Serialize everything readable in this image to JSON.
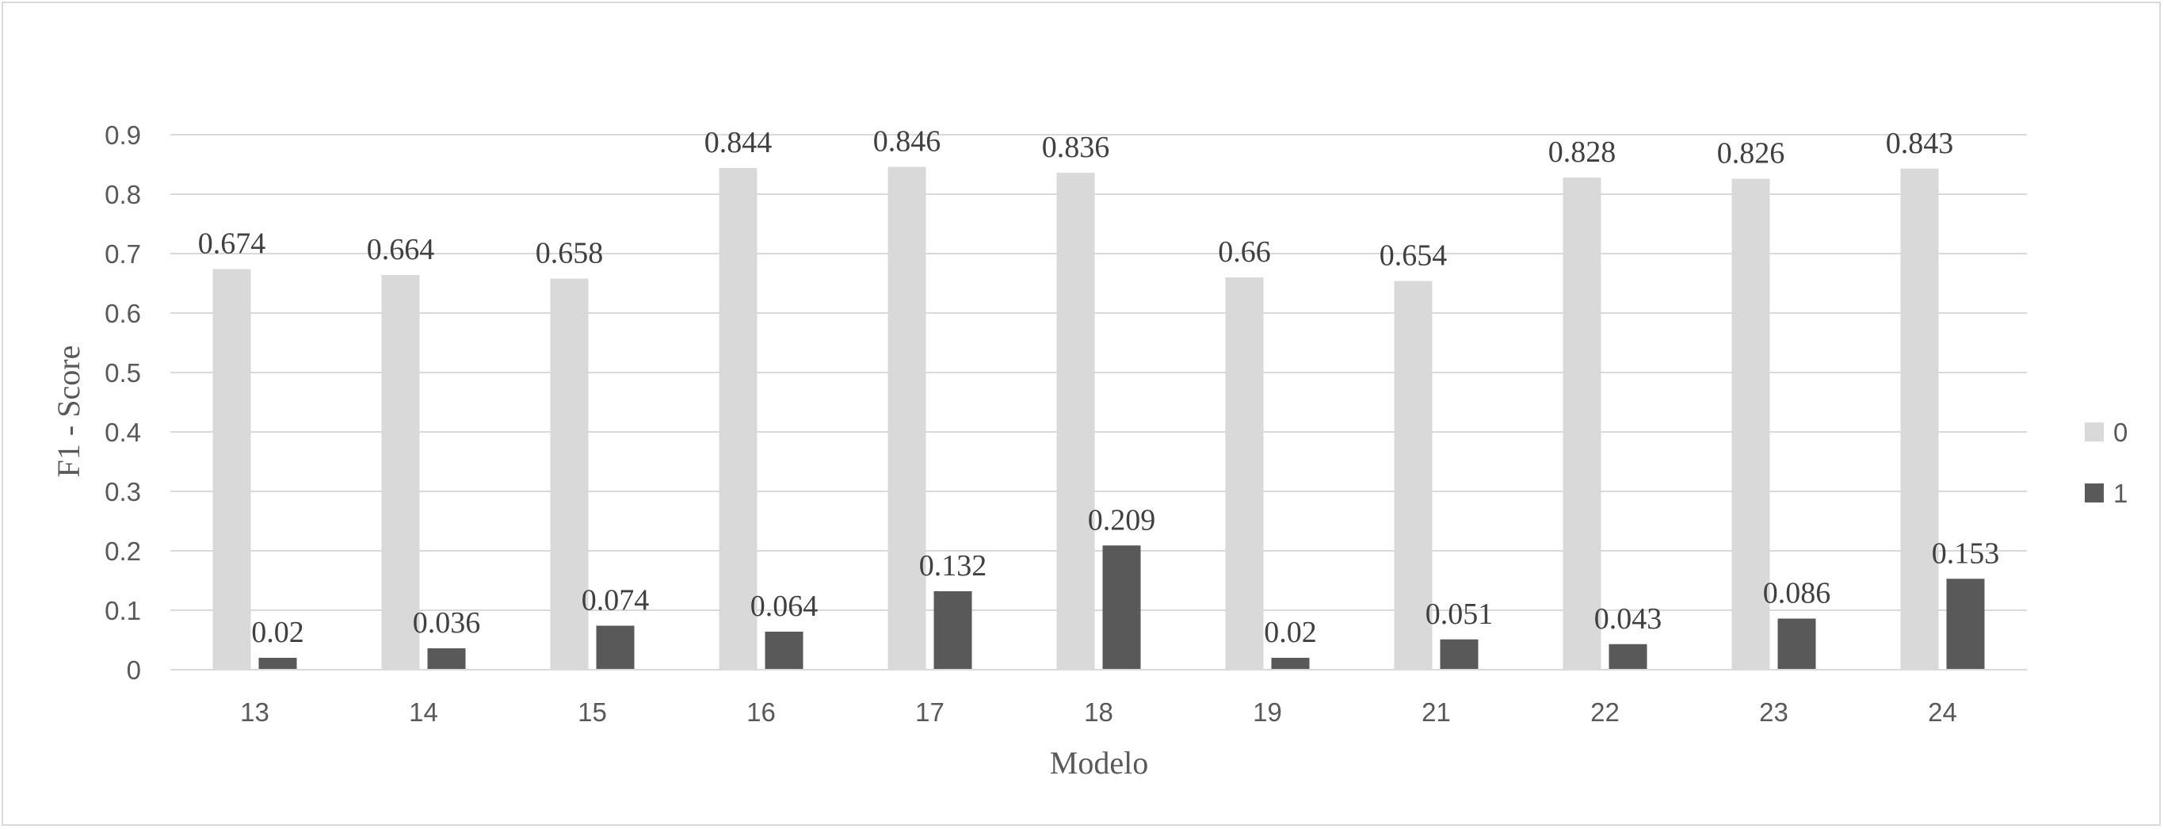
{
  "chart_data": {
    "type": "bar",
    "title": "",
    "xlabel": "Modelo",
    "ylabel": "F1 - Score",
    "categories": [
      "13",
      "14",
      "15",
      "16",
      "17",
      "18",
      "19",
      "21",
      "22",
      "23",
      "24"
    ],
    "series": [
      {
        "name": "0",
        "color": "#d9d9d9",
        "values": [
          0.674,
          0.664,
          0.658,
          0.844,
          0.846,
          0.836,
          0.66,
          0.654,
          0.828,
          0.826,
          0.843
        ]
      },
      {
        "name": "1",
        "color": "#595959",
        "values": [
          0.02,
          0.036,
          0.074,
          0.064,
          0.132,
          0.209,
          0.02,
          0.051,
          0.043,
          0.086,
          0.153
        ]
      }
    ],
    "data_labels": [
      [
        "0.674",
        "0.664",
        "0.658",
        "0.844",
        "0.846",
        "0.836",
        "0.66",
        "0.654",
        "0.828",
        "0.826",
        "0.843"
      ],
      [
        "0.02",
        "0.036",
        "0.074",
        "0.064",
        "0.132",
        "0.209",
        "0.02",
        "0.051",
        "0.043",
        "0.086",
        "0.153"
      ]
    ],
    "yticks": [
      "0",
      "0.1",
      "0.2",
      "0.3",
      "0.4",
      "0.5",
      "0.6",
      "0.7",
      "0.8",
      "0.9"
    ],
    "ylim": [
      0,
      0.9
    ],
    "grid": true,
    "legend": "right"
  }
}
